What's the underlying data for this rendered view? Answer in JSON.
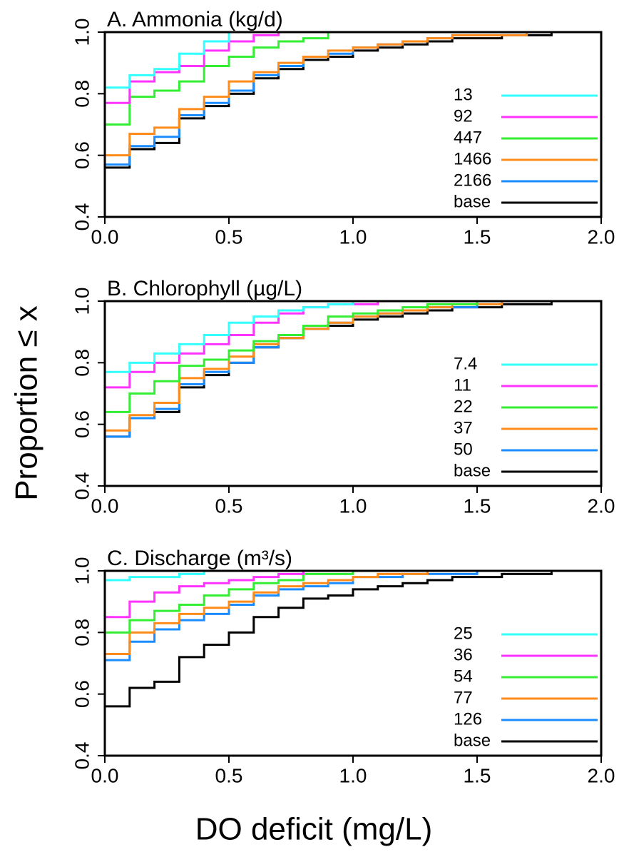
{
  "shared_ylabel": "Proportion ≤ x",
  "shared_xlabel": "DO deficit (mg/L)",
  "chart_data": [
    {
      "type": "line",
      "drawstyle": "steps-post",
      "title": "A. Ammonia (kg/d)",
      "legend": "right",
      "xlim": [
        0,
        2
      ],
      "ylim": [
        0.4,
        1
      ],
      "xticks": [
        {
          "value": 0,
          "label": "0.0"
        },
        {
          "value": 0.5,
          "label": "0.5"
        },
        {
          "value": 1,
          "label": "1.0"
        },
        {
          "value": 1.5,
          "label": "1.5"
        },
        {
          "value": 2,
          "label": "2.0"
        }
      ],
      "yticks": [
        {
          "value": 0.4,
          "label": "0.4"
        },
        {
          "value": 0.6,
          "label": "0.6"
        },
        {
          "value": 0.8,
          "label": "0.8"
        },
        {
          "value": 1,
          "label": "1.0"
        }
      ],
      "x": [
        0,
        0.1,
        0.2,
        0.3,
        0.4,
        0.5,
        0.6,
        0.7,
        0.8,
        0.9,
        1.0,
        1.1,
        1.2,
        1.3,
        1.4,
        1.5,
        1.6,
        1.7,
        1.8
      ],
      "series": [
        {
          "name": "13",
          "color": "#33ffff",
          "values": [
            0.82,
            0.86,
            0.88,
            0.93,
            0.97,
            1.0,
            null,
            null,
            null,
            null,
            null,
            null,
            null,
            null,
            null,
            null,
            null,
            null,
            null
          ]
        },
        {
          "name": "92",
          "color": "#ff33ff",
          "values": [
            0.77,
            0.84,
            0.87,
            0.89,
            0.94,
            0.97,
            0.99,
            1.0,
            null,
            null,
            null,
            null,
            null,
            null,
            null,
            null,
            null,
            null,
            null
          ]
        },
        {
          "name": "447",
          "color": "#33ee33",
          "values": [
            0.7,
            0.79,
            0.81,
            0.84,
            0.89,
            0.92,
            0.95,
            0.97,
            0.98,
            1.0,
            null,
            null,
            null,
            null,
            null,
            null,
            null,
            null,
            null
          ]
        },
        {
          "name": "1466",
          "color": "#ff8c1a",
          "values": [
            0.6,
            0.67,
            0.69,
            0.75,
            0.79,
            0.84,
            0.87,
            0.9,
            0.92,
            0.94,
            0.95,
            0.96,
            0.97,
            0.98,
            0.99,
            0.99,
            0.99,
            1.0,
            null
          ]
        },
        {
          "name": "2166",
          "color": "#1a8cff",
          "values": [
            0.57,
            0.63,
            0.66,
            0.73,
            0.77,
            0.81,
            0.86,
            0.89,
            0.92,
            0.93,
            0.95,
            0.96,
            0.97,
            0.98,
            0.99,
            0.99,
            0.99,
            1.0,
            null
          ]
        },
        {
          "name": "base",
          "color": "#000000",
          "values": [
            0.56,
            0.62,
            0.64,
            0.72,
            0.76,
            0.8,
            0.85,
            0.88,
            0.91,
            0.92,
            0.94,
            0.95,
            0.96,
            0.97,
            0.98,
            0.98,
            0.99,
            0.99,
            1.0
          ]
        }
      ]
    },
    {
      "type": "line",
      "drawstyle": "steps-post",
      "title": "B. Chlorophyll (µg/L)",
      "legend": "right",
      "xlim": [
        0,
        2
      ],
      "ylim": [
        0.4,
        1
      ],
      "xticks": [
        {
          "value": 0,
          "label": "0.0"
        },
        {
          "value": 0.5,
          "label": "0.5"
        },
        {
          "value": 1,
          "label": "1.0"
        },
        {
          "value": 1.5,
          "label": "1.5"
        },
        {
          "value": 2,
          "label": "2.0"
        }
      ],
      "yticks": [
        {
          "value": 0.4,
          "label": "0.4"
        },
        {
          "value": 0.6,
          "label": "0.6"
        },
        {
          "value": 0.8,
          "label": "0.8"
        },
        {
          "value": 1,
          "label": "1.0"
        }
      ],
      "x": [
        0,
        0.1,
        0.2,
        0.3,
        0.4,
        0.5,
        0.6,
        0.7,
        0.8,
        0.9,
        1.0,
        1.1,
        1.2,
        1.3,
        1.4,
        1.5,
        1.6,
        1.7,
        1.8
      ],
      "series": [
        {
          "name": "7.4",
          "color": "#33ffff",
          "values": [
            0.77,
            0.8,
            0.83,
            0.86,
            0.89,
            0.93,
            0.95,
            0.97,
            0.98,
            0.99,
            1.0,
            null,
            null,
            null,
            null,
            null,
            null,
            null,
            null
          ]
        },
        {
          "name": "11",
          "color": "#ff33ff",
          "values": [
            0.72,
            0.77,
            0.8,
            0.83,
            0.86,
            0.89,
            0.93,
            0.96,
            0.98,
            0.99,
            0.99,
            1.0,
            null,
            null,
            null,
            null,
            null,
            null,
            null
          ]
        },
        {
          "name": "22",
          "color": "#33ee33",
          "values": [
            0.64,
            0.7,
            0.74,
            0.79,
            0.81,
            0.84,
            0.87,
            0.89,
            0.92,
            0.95,
            0.96,
            0.97,
            0.98,
            0.99,
            0.99,
            1.0,
            null,
            null,
            null
          ]
        },
        {
          "name": "37",
          "color": "#ff8c1a",
          "values": [
            0.58,
            0.63,
            0.67,
            0.75,
            0.78,
            0.82,
            0.86,
            0.88,
            0.91,
            0.93,
            0.95,
            0.96,
            0.97,
            0.98,
            0.99,
            0.99,
            1.0,
            null,
            null
          ]
        },
        {
          "name": "50",
          "color": "#1a8cff",
          "values": [
            0.56,
            0.62,
            0.65,
            0.73,
            0.77,
            0.8,
            0.85,
            0.88,
            0.91,
            0.93,
            0.95,
            0.96,
            0.97,
            0.98,
            0.98,
            0.99,
            1.0,
            null,
            null
          ]
        },
        {
          "name": "base",
          "color": "#000000",
          "values": [
            0.56,
            0.62,
            0.64,
            0.72,
            0.76,
            0.8,
            0.85,
            0.88,
            0.91,
            0.92,
            0.94,
            0.95,
            0.96,
            0.97,
            0.98,
            0.98,
            0.99,
            0.99,
            1.0
          ]
        }
      ]
    },
    {
      "type": "line",
      "drawstyle": "steps-post",
      "title": "C. Discharge (m³/s)",
      "legend": "right",
      "xlim": [
        0,
        2
      ],
      "ylim": [
        0.4,
        1
      ],
      "xticks": [
        {
          "value": 0,
          "label": "0.0"
        },
        {
          "value": 0.5,
          "label": "0.5"
        },
        {
          "value": 1,
          "label": "1.0"
        },
        {
          "value": 1.5,
          "label": "1.5"
        },
        {
          "value": 2,
          "label": "2.0"
        }
      ],
      "yticks": [
        {
          "value": 0.4,
          "label": "0.4"
        },
        {
          "value": 0.6,
          "label": "0.6"
        },
        {
          "value": 0.8,
          "label": "0.8"
        },
        {
          "value": 1,
          "label": "1.0"
        }
      ],
      "x": [
        0,
        0.1,
        0.2,
        0.3,
        0.4,
        0.5,
        0.6,
        0.7,
        0.8,
        0.9,
        1.0,
        1.1,
        1.2,
        1.3,
        1.4,
        1.5,
        1.6,
        1.7,
        1.8
      ],
      "series": [
        {
          "name": "25",
          "color": "#33ffff",
          "values": [
            0.97,
            0.98,
            0.98,
            0.99,
            1.0,
            null,
            null,
            null,
            null,
            null,
            null,
            null,
            null,
            null,
            null,
            null,
            null,
            null,
            null
          ]
        },
        {
          "name": "36",
          "color": "#ff33ff",
          "values": [
            0.85,
            0.9,
            0.93,
            0.95,
            0.96,
            0.97,
            0.98,
            0.99,
            1.0,
            null,
            null,
            null,
            null,
            null,
            null,
            null,
            null,
            null,
            null
          ]
        },
        {
          "name": "54",
          "color": "#33ee33",
          "values": [
            0.8,
            0.84,
            0.87,
            0.89,
            0.92,
            0.94,
            0.96,
            0.97,
            0.99,
            0.99,
            1.0,
            null,
            null,
            null,
            null,
            null,
            null,
            null,
            null
          ]
        },
        {
          "name": "77",
          "color": "#ff8c1a",
          "values": [
            0.73,
            0.8,
            0.83,
            0.86,
            0.88,
            0.9,
            0.93,
            0.95,
            0.96,
            0.97,
            0.98,
            0.99,
            0.99,
            1.0,
            null,
            null,
            null,
            null,
            null
          ]
        },
        {
          "name": "126",
          "color": "#1a8cff",
          "values": [
            0.71,
            0.77,
            0.81,
            0.84,
            0.86,
            0.89,
            0.92,
            0.94,
            0.95,
            0.96,
            0.98,
            0.98,
            0.99,
            0.99,
            0.99,
            1.0,
            null,
            null,
            null
          ]
        },
        {
          "name": "base",
          "color": "#000000",
          "values": [
            0.56,
            0.62,
            0.64,
            0.72,
            0.76,
            0.8,
            0.85,
            0.88,
            0.91,
            0.92,
            0.94,
            0.95,
            0.96,
            0.97,
            0.98,
            0.98,
            0.99,
            0.99,
            1.0
          ]
        }
      ]
    }
  ]
}
